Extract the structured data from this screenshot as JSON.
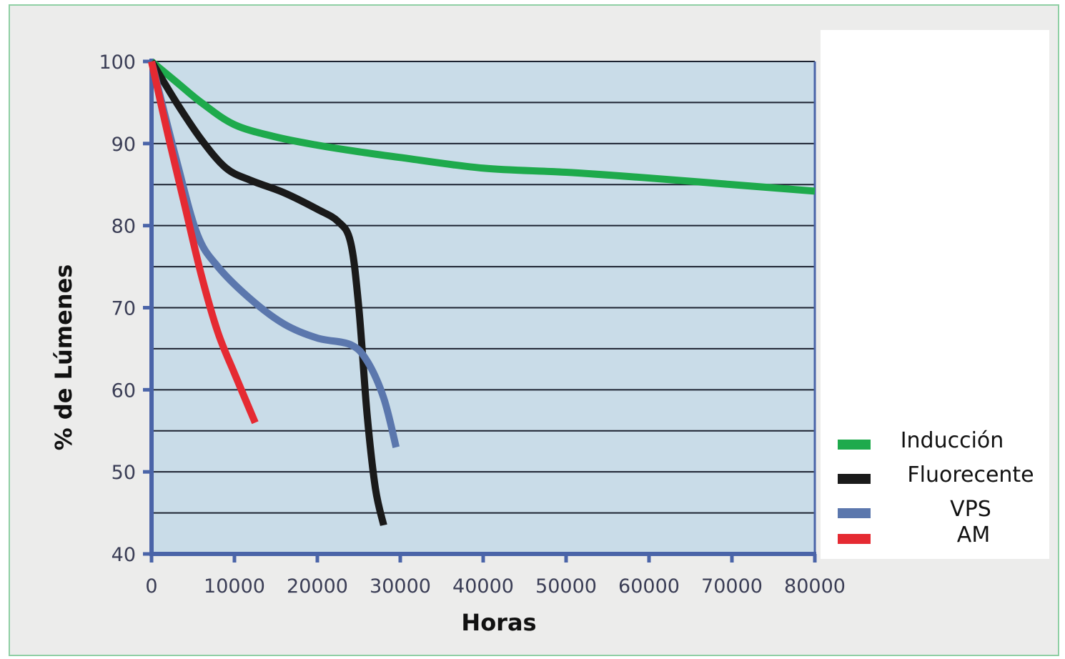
{
  "chart_data": {
    "type": "line",
    "xlabel": "Horas",
    "ylabel": "% de Lúmenes",
    "xlim": [
      0,
      80000
    ],
    "ylim": [
      40,
      100
    ],
    "x_ticks": [
      0,
      10000,
      20000,
      30000,
      40000,
      50000,
      60000,
      70000,
      80000
    ],
    "x_tick_labels": [
      "0",
      "10000",
      "20000",
      "30000",
      "40000",
      "50000",
      "60000",
      "70000",
      "80000"
    ],
    "y_ticks": [
      40,
      50,
      60,
      70,
      80,
      90,
      100
    ],
    "y_tick_labels": [
      "40",
      "50",
      "60",
      "70",
      "80",
      "90",
      "100"
    ],
    "grid": true,
    "legend_position": "bottom-right",
    "series": [
      {
        "name": "Inducción",
        "color": "#1eaa4c",
        "x": [
          0,
          3000,
          6000,
          10000,
          15000,
          20000,
          25000,
          30000,
          40000,
          50000,
          60000,
          70000,
          80000
        ],
        "y": [
          100,
          97.5,
          95,
          92.3,
          90.8,
          89.8,
          89,
          88.3,
          87,
          86.5,
          85.8,
          85,
          84.2
        ]
      },
      {
        "name": "Fluorecente",
        "color": "#1a1a1a",
        "x": [
          0,
          3000,
          6000,
          9000,
          12000,
          16000,
          20000,
          22500,
          24000,
          25000,
          26000,
          27000,
          28000
        ],
        "y": [
          100,
          95,
          90.5,
          87,
          85.5,
          84,
          82,
          80.5,
          78,
          70,
          57,
          48,
          43.5
        ]
      },
      {
        "name": "VPS",
        "color": "#5b77ad",
        "x": [
          0,
          3000,
          5500,
          8000,
          12000,
          16000,
          20000,
          24000,
          26000,
          28000,
          29500
        ],
        "y": [
          100,
          88,
          79,
          75,
          71,
          68,
          66.3,
          65.5,
          63.5,
          59,
          53
        ]
      },
      {
        "name": "AM",
        "color": "#e52a32",
        "x": [
          0,
          2000,
          4000,
          6000,
          8000,
          10000,
          12500
        ],
        "y": [
          100,
          91,
          82.5,
          74,
          67,
          62,
          56
        ]
      }
    ]
  }
}
